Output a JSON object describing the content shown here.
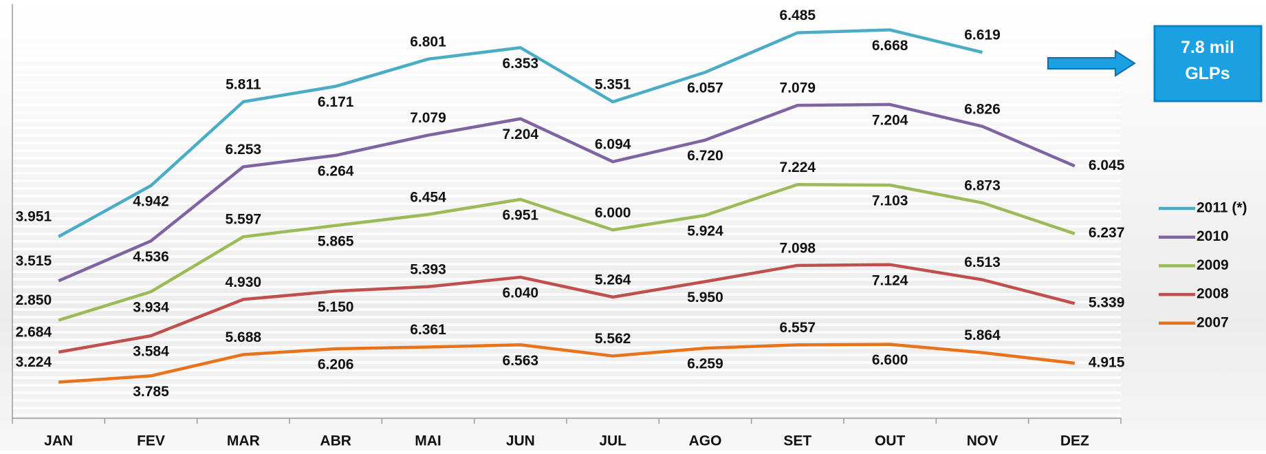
{
  "chart_data": {
    "type": "line",
    "stacked": true,
    "categories": [
      "JAN",
      "FEV",
      "MAR",
      "ABR",
      "MAI",
      "JUN",
      "JUL",
      "AGO",
      "SET",
      "OUT",
      "NOV",
      "DEZ"
    ],
    "ylim": [
      0,
      37000
    ],
    "legend": "right",
    "annotation": "7.8 mil GLPs",
    "series": [
      {
        "name": "2007",
        "color": "#e8731a",
        "values": [
          3224,
          3785,
          5688,
          6206,
          6361,
          6563,
          5562,
          6259,
          6557,
          6600,
          5864,
          4915
        ],
        "value_labels": [
          "3.224",
          "3.785",
          "5.688",
          "6.206",
          "6.361",
          "6.563",
          "5.562",
          "6.259",
          "6.557",
          "6.600",
          "5.864",
          "4.915"
        ]
      },
      {
        "name": "2008",
        "color": "#c0504d",
        "values": [
          2684,
          3584,
          4930,
          5150,
          5393,
          6040,
          5264,
          5950,
          7098,
          7124,
          6513,
          5339
        ],
        "value_labels": [
          "2.684",
          "3.584",
          "4.930",
          "5.150",
          "5.393",
          "6.040",
          "5.264",
          "5.950",
          "7.098",
          "7.124",
          "6.513",
          "5.339"
        ]
      },
      {
        "name": "2009",
        "color": "#9bbb59",
        "values": [
          2850,
          3934,
          5597,
          5865,
          6454,
          6951,
          6000,
          5924,
          7224,
          7103,
          6873,
          6237
        ],
        "value_labels": [
          "2.850",
          "3.934",
          "5.597",
          "5.865",
          "6.454",
          "6.951",
          "6.000",
          "5.924",
          "7.224",
          "7.103",
          "6.873",
          "6.237"
        ]
      },
      {
        "name": "2010",
        "color": "#8064a2",
        "values": [
          3515,
          4536,
          6253,
          6264,
          7079,
          7204,
          6094,
          6720,
          7079,
          7204,
          6826,
          6045
        ],
        "value_labels": [
          "3.515",
          "4.536",
          "6.253",
          "6.264",
          "7.079",
          "7.204",
          "6.094",
          "6.720",
          "7.079",
          "7.204",
          "6.826",
          "6.045"
        ]
      },
      {
        "name": "2011 (*)",
        "color": "#4bacc6",
        "values": [
          3951,
          4942,
          5811,
          6171,
          6801,
          6353,
          5351,
          6057,
          6485,
          6668,
          6619,
          null
        ],
        "value_labels": [
          "3.951",
          "4.942",
          "5.811",
          "6.171",
          "6.801",
          "6.353",
          "5.351",
          "6.057",
          "6.485",
          "6.668",
          "6.619",
          null
        ]
      }
    ]
  }
}
